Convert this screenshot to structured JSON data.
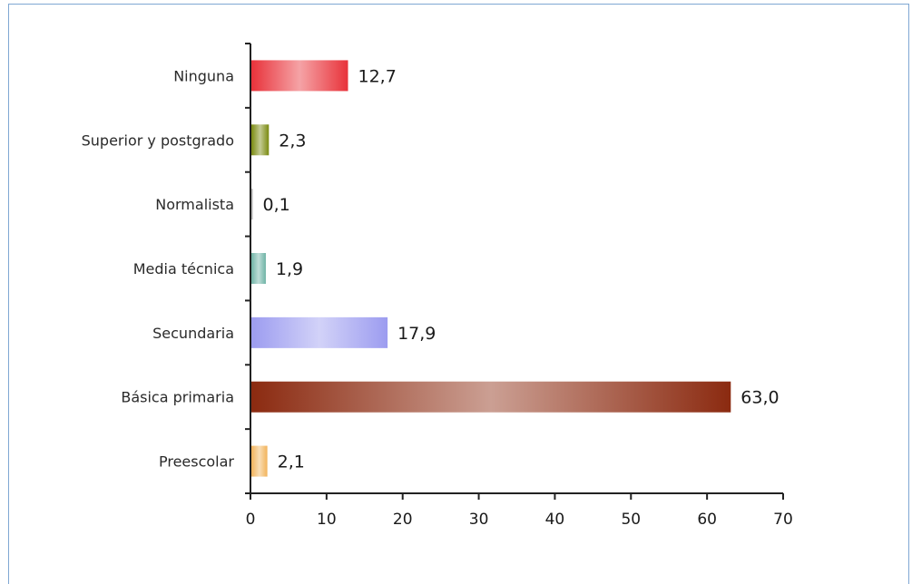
{
  "chart_data": {
    "type": "bar",
    "orientation": "horizontal",
    "categories": [
      "Ninguna",
      "Superior y postgrado",
      "Normalista",
      "Media técnica",
      "Secundaria",
      "Básica primaria",
      "Preescolar"
    ],
    "values": [
      12.7,
      2.3,
      0.1,
      1.9,
      17.9,
      63.0,
      2.1
    ],
    "value_labels": [
      "12,7",
      "2,3",
      "0,1",
      "1,9",
      "17,9",
      "63,0",
      "2,1"
    ],
    "colors": [
      "#e8323a",
      "#7a8a10",
      "#9a9a9a",
      "#6fb3a6",
      "#9c9cf0",
      "#8b2a10",
      "#f2b35a"
    ],
    "xlim": [
      0,
      70
    ],
    "xticks": [
      "0",
      "10",
      "20",
      "30",
      "40",
      "50",
      "60",
      "70"
    ],
    "title": "",
    "xlabel": "",
    "ylabel": "",
    "grid": false,
    "legend": "none"
  }
}
